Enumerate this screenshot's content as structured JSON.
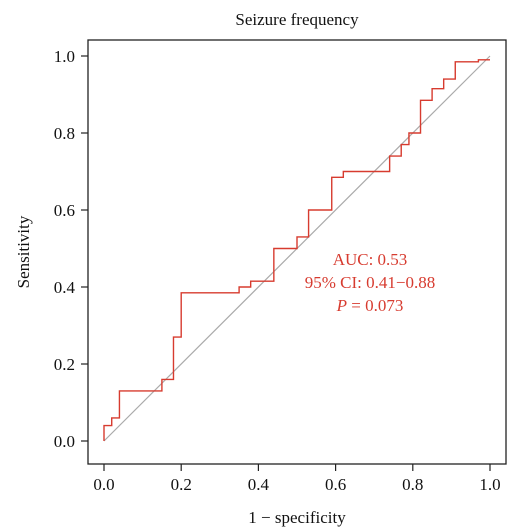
{
  "chart_data": {
    "type": "line",
    "title": "Seizure frequency",
    "xlabel": "1 − specificity",
    "ylabel": "Sensitivity",
    "xlim": [
      0,
      1
    ],
    "ylim": [
      0,
      1
    ],
    "xticks": [
      "0.0",
      "0.2",
      "0.4",
      "0.6",
      "0.8",
      "1.0"
    ],
    "yticks": [
      "0.0",
      "0.2",
      "0.4",
      "0.6",
      "0.8",
      "1.0"
    ],
    "grid": false,
    "colors": {
      "roc": "#d73b2f",
      "reference": "#aaaaaa",
      "axes": "#222222",
      "annotation": "#d73b2f"
    },
    "series": [
      {
        "x": [
          0,
          0,
          0.02,
          0.02,
          0.04,
          0.04,
          0.06,
          0.06,
          0.15,
          0.15,
          0.18,
          0.18,
          0.2,
          0.2,
          0.35,
          0.35,
          0.38,
          0.38,
          0.44,
          0.44,
          0.5,
          0.5,
          0.53,
          0.53,
          0.59,
          0.59,
          0.62,
          0.62,
          0.74,
          0.74,
          0.77,
          0.77,
          0.79,
          0.79,
          0.82,
          0.82,
          0.85,
          0.85,
          0.88,
          0.88,
          0.91,
          0.91,
          0.97,
          0.97,
          1.0
        ],
        "y": [
          0,
          0.04,
          0.04,
          0.06,
          0.06,
          0.13,
          0.13,
          0.13,
          0.13,
          0.16,
          0.16,
          0.27,
          0.27,
          0.385,
          0.385,
          0.4,
          0.4,
          0.415,
          0.415,
          0.5,
          0.5,
          0.53,
          0.53,
          0.6,
          0.6,
          0.685,
          0.685,
          0.7,
          0.7,
          0.74,
          0.74,
          0.77,
          0.77,
          0.8,
          0.8,
          0.885,
          0.885,
          0.915,
          0.915,
          0.94,
          0.94,
          0.985,
          0.985,
          0.99,
          0.99
        ]
      },
      {
        "x": [
          0,
          1
        ],
        "y": [
          0,
          1
        ]
      }
    ],
    "annotations": {
      "auc": "AUC: 0.53",
      "ci": "95% CI: 0.41−0.88",
      "p_symbol": "P",
      "p_value": " = 0.073"
    }
  }
}
